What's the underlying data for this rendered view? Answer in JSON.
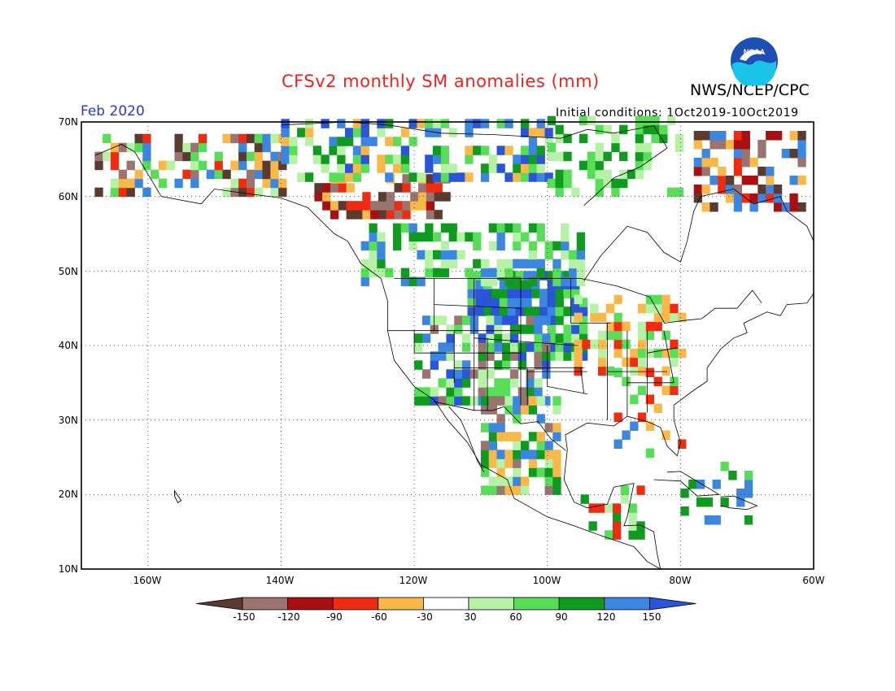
{
  "title": "CFSv2 monthly SM anomalies (mm)",
  "agency": "NWS/NCEP/CPC",
  "logo_text": "NOAA",
  "valid_month": "Feb 2020",
  "initial_conditions": "Initial conditions: 1Oct2019-10Oct2019",
  "lat_labels": [
    "70N",
    "60N",
    "50N",
    "40N",
    "30N",
    "20N",
    "10N"
  ],
  "lon_labels": [
    "160W",
    "140W",
    "120W",
    "100W",
    "80W",
    "60W"
  ],
  "colorbar": {
    "labels": [
      "-150",
      "-120",
      "-90",
      "-60",
      "-30",
      "30",
      "60",
      "90",
      "120",
      "150"
    ],
    "colors": [
      "#5a3a2e",
      "#9b7570",
      "#a00d0d",
      "#e1200e",
      "#ff5a16",
      "#fbb84a",
      "#ffffff",
      "#b1f2a1",
      "#5ae05a",
      "#0fa01d",
      "#3a7fe0",
      "#2a54d8"
    ]
  },
  "map": {
    "region": "North America",
    "lon_range": [
      -170,
      -60
    ],
    "lat_range": [
      10,
      70
    ],
    "grid": "dotted"
  }
}
